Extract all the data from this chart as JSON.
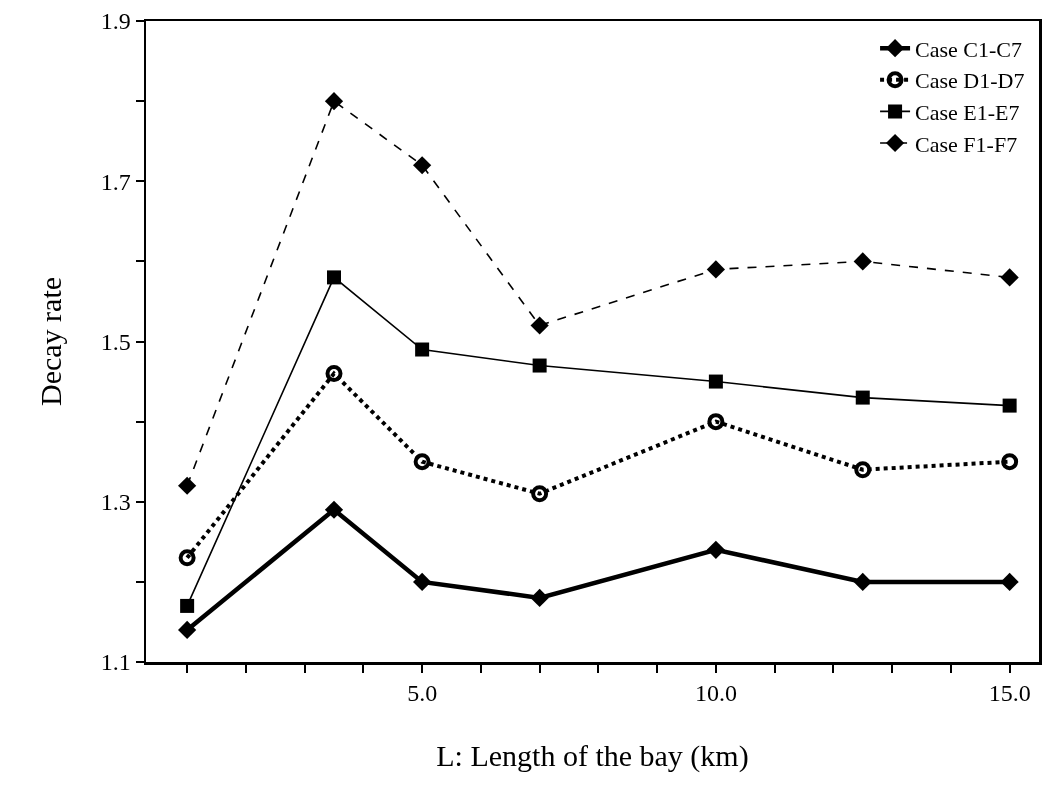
{
  "chart_data": {
    "type": "line",
    "xlabel": "L: Length of the bay (km)",
    "ylabel": "Decay rate",
    "x": [
      1.0,
      3.5,
      5.0,
      7.0,
      10.0,
      12.5,
      15.0
    ],
    "xlim": [
      0.3,
      15.5
    ],
    "xticks": [
      {
        "value": 1,
        "label": null
      },
      {
        "value": 2,
        "label": null
      },
      {
        "value": 3,
        "label": null
      },
      {
        "value": 4,
        "label": null
      },
      {
        "value": 5,
        "label": "5.0"
      },
      {
        "value": 6,
        "label": null
      },
      {
        "value": 7,
        "label": null
      },
      {
        "value": 8,
        "label": null
      },
      {
        "value": 9,
        "label": null
      },
      {
        "value": 10,
        "label": "10.0"
      },
      {
        "value": 11,
        "label": null
      },
      {
        "value": 12,
        "label": null
      },
      {
        "value": 13,
        "label": null
      },
      {
        "value": 14,
        "label": null
      },
      {
        "value": 15,
        "label": "15.0"
      }
    ],
    "ylim": [
      1.1,
      1.9
    ],
    "yticks": [
      1.1,
      {
        "value": 1.2,
        "label": null
      },
      1.3,
      {
        "value": 1.4,
        "label": null
      },
      1.5,
      {
        "value": 1.6,
        "label": null
      },
      1.7,
      {
        "value": 1.8,
        "label": null
      },
      1.9
    ],
    "grid": false,
    "legend": "top right",
    "series": [
      {
        "name": "Case C1-C7",
        "color": "#000000",
        "marker": "diamond",
        "line_style": "solid",
        "values": [
          1.14,
          1.29,
          1.2,
          1.18,
          1.24,
          1.2,
          1.2
        ]
      },
      {
        "name": "Case D1-D7",
        "color": "#000000",
        "marker": "circle",
        "line_style": "dotted",
        "values": [
          1.23,
          1.46,
          1.35,
          1.31,
          1.4,
          1.34,
          1.35
        ]
      },
      {
        "name": "Case E1-E7",
        "color": "#000000",
        "marker": "square",
        "line_style": "solid",
        "values": [
          1.17,
          1.58,
          1.49,
          1.47,
          1.45,
          1.43,
          1.42
        ]
      },
      {
        "name": "Case F1-F7",
        "color": "#000000",
        "marker": "diamond",
        "line_style": "dashed",
        "values": [
          1.32,
          1.8,
          1.72,
          1.52,
          1.59,
          1.6,
          1.58
        ]
      }
    ]
  }
}
